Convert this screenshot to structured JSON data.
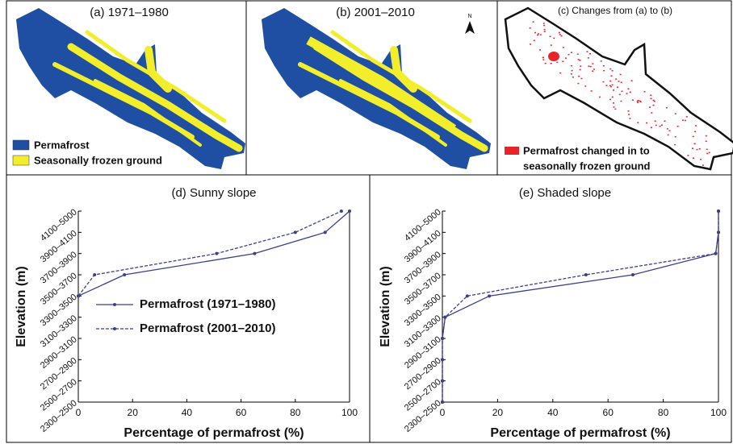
{
  "panels": [
    {
      "title": "(a) 1971–1980",
      "legend": [
        {
          "label": "Permafrost",
          "color": "#1f4fa3"
        },
        {
          "label": "Seasonally frozen ground",
          "color": "#f2ee2c"
        }
      ]
    },
    {
      "title": "(b) 2001–2010",
      "north": "N"
    },
    {
      "title": "(c) Changes from (a) to (b)",
      "legend": [
        {
          "label": "Permafrost changed in to",
          "color": "#e8232a"
        },
        {
          "label": "seasonally frozen ground"
        }
      ]
    }
  ],
  "chart_data": [
    {
      "type": "line",
      "orientation": "horizontal",
      "title": "(d) Sunny slope",
      "xlabel": "Percentage of permafrost (%)",
      "ylabel": "Elevation (m)",
      "categories": [
        "2300–2500",
        "2500–2700",
        "2700–2900",
        "2900–3100",
        "3100–3300",
        "3300–3500",
        "3500–3700",
        "3700–3900",
        "3900–4100",
        "4100–5000"
      ],
      "xlim": [
        0,
        100
      ],
      "xticks": [
        0,
        20,
        40,
        60,
        80,
        100
      ],
      "legend": "left",
      "series": [
        {
          "name": "Permafrost (1971–1980)",
          "color": "#3b3f8c",
          "line_style": "solid",
          "values": [
            null,
            null,
            null,
            null,
            null,
            0,
            17,
            65,
            91,
            100
          ]
        },
        {
          "name": "Permafrost (2001–2010)",
          "color": "#3b3f8c",
          "line_style": "dashed",
          "values": [
            null,
            null,
            null,
            null,
            null,
            0,
            6,
            51,
            80,
            97
          ]
        }
      ]
    },
    {
      "type": "line",
      "orientation": "horizontal",
      "title": "(e) Shaded slope",
      "xlabel": "Percentage of permafrost (%)",
      "ylabel": "Elevation (m)",
      "categories": [
        "2300–2500",
        "2500–2700",
        "2700–2900",
        "2900–3100",
        "3100–3300",
        "3300–3500",
        "3500–3700",
        "3700–3900",
        "3900–4100",
        "4100–5000"
      ],
      "xlim": [
        0,
        100
      ],
      "xticks": [
        0,
        20,
        40,
        60,
        80,
        100
      ],
      "legend": "none",
      "series": [
        {
          "color": "#3b3f8c",
          "line_style": "solid",
          "values": [
            0,
            0,
            0,
            0,
            1,
            17,
            69,
            99,
            100,
            100
          ]
        },
        {
          "color": "#3b3f8c",
          "line_style": "dashed",
          "values": [
            0,
            0,
            0,
            0,
            1,
            9,
            52,
            99,
            100,
            100
          ]
        }
      ]
    }
  ]
}
